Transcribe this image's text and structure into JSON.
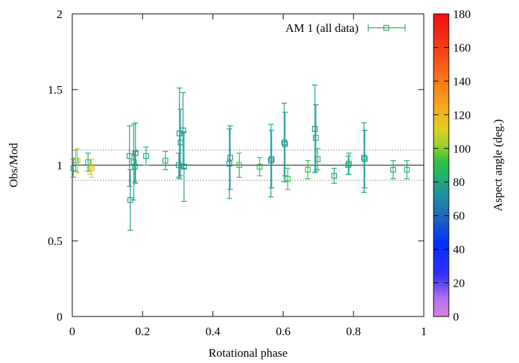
{
  "chart_data": {
    "type": "scatter",
    "xlabel": "Rotational phase",
    "ylabel": "Obs/Mod",
    "xlim": [
      0,
      1
    ],
    "ylim": [
      0,
      2
    ],
    "x_ticks": [
      "0",
      "0.2",
      "0.4",
      "0.6",
      "0.8",
      "1"
    ],
    "y_ticks": [
      "0",
      "0.5",
      "1",
      "1.5",
      "2"
    ],
    "reference_lines": [
      {
        "y": 1.0,
        "style": "solid"
      },
      {
        "y": 1.1,
        "style": "dotted"
      },
      {
        "y": 0.9,
        "style": "dotted"
      }
    ],
    "legend": {
      "label": "AM 1 (all data)",
      "position": "top-right"
    },
    "colorbar": {
      "label": "Aspect angle (deg.)",
      "range": [
        0,
        180
      ],
      "ticks": [
        "0",
        "20",
        "40",
        "60",
        "80",
        "100",
        "120",
        "140",
        "160",
        "180"
      ]
    },
    "series": [
      {
        "name": "AM 1 (all data)",
        "points": [
          {
            "x": 0.003,
            "y": 0.98,
            "err": 0.06,
            "aspect": 82
          },
          {
            "x": 0.01,
            "y": 1.03,
            "err": 0.07,
            "aspect": 85
          },
          {
            "x": 0.015,
            "y": 1.03,
            "err": 0.08,
            "aspect": 108
          },
          {
            "x": 0.045,
            "y": 1.02,
            "err": 0.06,
            "aspect": 80
          },
          {
            "x": 0.05,
            "y": 0.99,
            "err": 0.05,
            "aspect": 110
          },
          {
            "x": 0.055,
            "y": 0.98,
            "err": 0.06,
            "aspect": 115
          },
          {
            "x": 0.163,
            "y": 1.06,
            "err": 0.2,
            "aspect": 75
          },
          {
            "x": 0.165,
            "y": 0.77,
            "err": 0.2,
            "aspect": 75
          },
          {
            "x": 0.175,
            "y": 1.02,
            "err": 0.25,
            "aspect": 78
          },
          {
            "x": 0.178,
            "y": 0.99,
            "err": 0.1,
            "aspect": 80
          },
          {
            "x": 0.18,
            "y": 1.08,
            "err": 0.2,
            "aspect": 76
          },
          {
            "x": 0.21,
            "y": 1.06,
            "err": 0.06,
            "aspect": 82
          },
          {
            "x": 0.265,
            "y": 1.03,
            "err": 0.06,
            "aspect": 80
          },
          {
            "x": 0.303,
            "y": 1.0,
            "err": 0.08,
            "aspect": 78
          },
          {
            "x": 0.305,
            "y": 1.21,
            "err": 0.3,
            "aspect": 74
          },
          {
            "x": 0.308,
            "y": 1.15,
            "err": 0.22,
            "aspect": 76
          },
          {
            "x": 0.315,
            "y": 1.23,
            "err": 0.25,
            "aspect": 75
          },
          {
            "x": 0.318,
            "y": 0.99,
            "err": 0.23,
            "aspect": 75
          },
          {
            "x": 0.447,
            "y": 1.01,
            "err": 0.23,
            "aspect": 76
          },
          {
            "x": 0.449,
            "y": 1.05,
            "err": 0.21,
            "aspect": 74
          },
          {
            "x": 0.475,
            "y": 1.0,
            "err": 0.08,
            "aspect": 92
          },
          {
            "x": 0.533,
            "y": 0.99,
            "err": 0.06,
            "aspect": 90
          },
          {
            "x": 0.565,
            "y": 1.03,
            "err": 0.24,
            "aspect": 75
          },
          {
            "x": 0.567,
            "y": 1.04,
            "err": 0.19,
            "aspect": 72
          },
          {
            "x": 0.603,
            "y": 1.15,
            "err": 0.26,
            "aspect": 74
          },
          {
            "x": 0.605,
            "y": 1.14,
            "err": 0.21,
            "aspect": 76
          },
          {
            "x": 0.613,
            "y": 0.91,
            "err": 0.07,
            "aspect": 90
          },
          {
            "x": 0.67,
            "y": 0.97,
            "err": 0.06,
            "aspect": 92
          },
          {
            "x": 0.69,
            "y": 1.24,
            "err": 0.29,
            "aspect": 74
          },
          {
            "x": 0.693,
            "y": 1.18,
            "err": 0.22,
            "aspect": 76
          },
          {
            "x": 0.698,
            "y": 1.04,
            "err": 0.07,
            "aspect": 82
          },
          {
            "x": 0.745,
            "y": 0.93,
            "err": 0.05,
            "aspect": 78
          },
          {
            "x": 0.785,
            "y": 1.0,
            "err": 0.06,
            "aspect": 82
          },
          {
            "x": 0.787,
            "y": 1.01,
            "err": 0.07,
            "aspect": 80
          },
          {
            "x": 0.83,
            "y": 1.05,
            "err": 0.23,
            "aspect": 74
          },
          {
            "x": 0.832,
            "y": 1.04,
            "err": 0.19,
            "aspect": 76
          },
          {
            "x": 0.913,
            "y": 0.97,
            "err": 0.06,
            "aspect": 78
          },
          {
            "x": 0.952,
            "y": 0.97,
            "err": 0.06,
            "aspect": 80
          }
        ]
      }
    ]
  }
}
